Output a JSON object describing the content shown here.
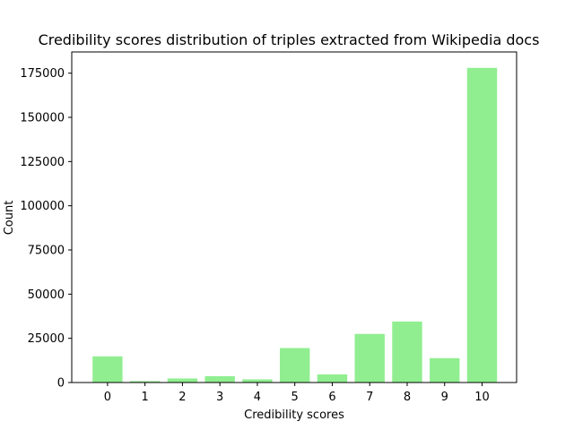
{
  "chart_data": {
    "type": "bar",
    "title": "Credibility scores distribution of triples extracted from Wikipedia docs",
    "xlabel": "Credibility scores",
    "ylabel": "Count",
    "categories": [
      "0",
      "1",
      "2",
      "3",
      "4",
      "5",
      "6",
      "7",
      "8",
      "9",
      "10"
    ],
    "values": [
      14800,
      800,
      2300,
      3600,
      1800,
      19500,
      4600,
      27500,
      34500,
      13800,
      178000
    ],
    "ylim": [
      0,
      187000
    ],
    "yticks": [
      0,
      25000,
      50000,
      75000,
      100000,
      125000,
      150000,
      175000
    ],
    "ytick_labels": [
      "0",
      "25000",
      "50000",
      "75000",
      "100000",
      "125000",
      "150000",
      "175000"
    ],
    "bar_color": "#90ee90",
    "grid": false,
    "legend": false
  }
}
